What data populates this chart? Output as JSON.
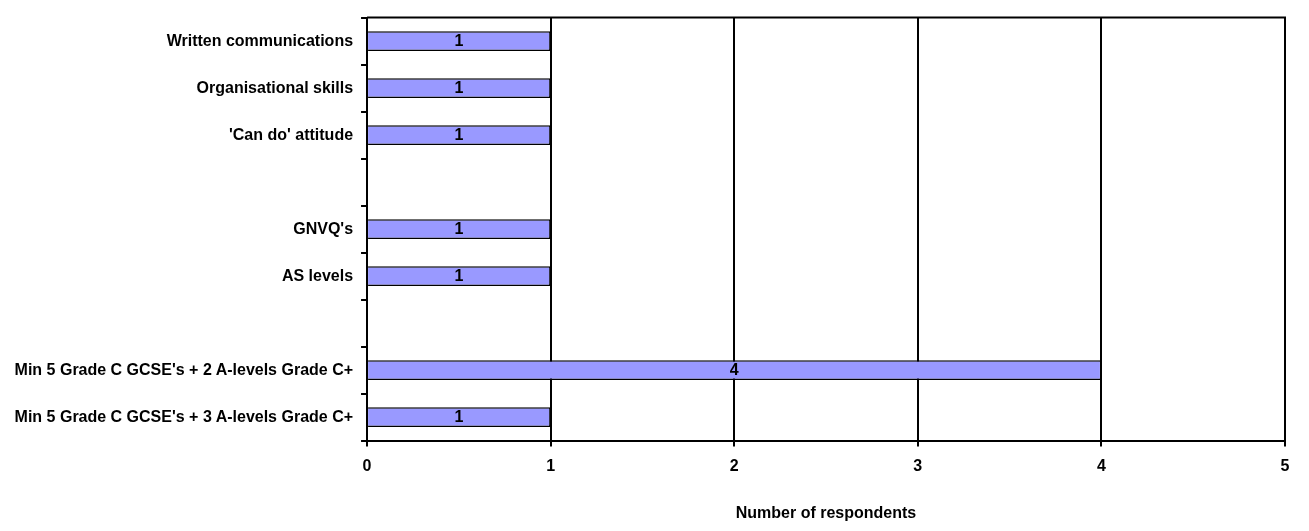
{
  "chart_data": {
    "type": "bar",
    "orientation": "horizontal",
    "xlabel": "Number of respondents",
    "categories": [
      "Written communications",
      "Organisational skills",
      "'Can do' attitude",
      null,
      "GNVQ's",
      "AS levels",
      null,
      "Min 5 Grade C GCSE's + 2 A-levels Grade C+",
      "Min 5 Grade C GCSE's + 3 A-levels Grade C+"
    ],
    "values": [
      1,
      1,
      1,
      null,
      1,
      1,
      null,
      4,
      1
    ],
    "color": "#9999ff",
    "xlim": [
      0,
      5
    ],
    "xticks": [
      0,
      1,
      2,
      3,
      4,
      5
    ],
    "grid": "x",
    "legend": false,
    "data_labels": true
  }
}
